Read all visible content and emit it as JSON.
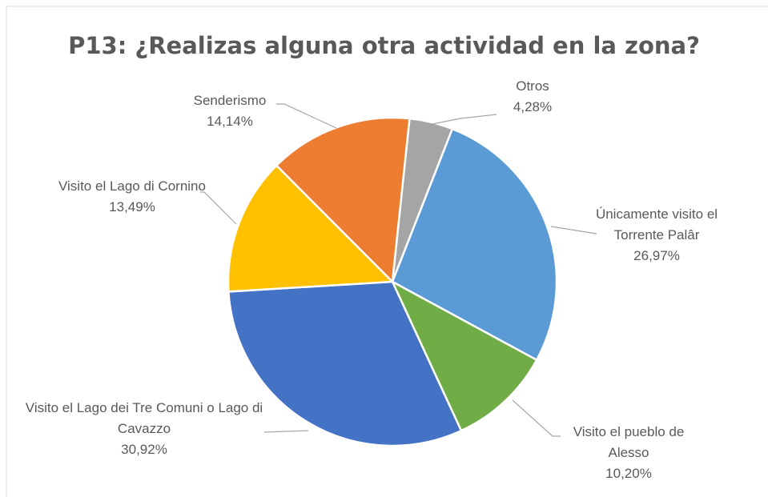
{
  "chart_data": {
    "type": "pie",
    "title": "P13: ¿Realizas alguna otra actividad en la zona?",
    "categories": [
      "Otros",
      "Únicamente visito el Torrente Palâr",
      "Visito el pueblo de Alesso",
      "Visito el Lago dei Tre Comuni o Lago di Cavazzo",
      "Visito el Lago di Cornino",
      "Senderismo"
    ],
    "values": [
      4.28,
      26.97,
      10.2,
      30.92,
      13.49,
      14.14
    ],
    "value_labels": [
      "4,28%",
      "26,97%",
      "10,20%",
      "30,92%",
      "13,49%",
      "14,14%"
    ],
    "colors": [
      "#a5a5a5",
      "#5b9bd5",
      "#70ad47",
      "#4472c4",
      "#ffc000",
      "#ed7d31"
    ],
    "start_angle": 6
  }
}
